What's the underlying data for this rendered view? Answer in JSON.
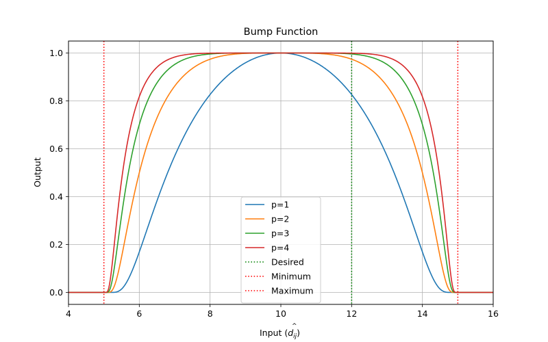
{
  "chart_data": {
    "type": "line",
    "title": "Bump Function",
    "xlabel": "Input (",
    "xlabel_math_base": "d",
    "xlabel_math_sub": "ij",
    "xlabel_math_hat": "^",
    "xlabel_close": ")",
    "ylabel": "Output",
    "xlim": [
      4,
      16
    ],
    "ylim": [
      -0.05,
      1.05
    ],
    "xticks": [
      4,
      6,
      8,
      10,
      12,
      14,
      16
    ],
    "yticks": [
      0.0,
      0.2,
      0.4,
      0.6,
      0.8,
      1.0
    ],
    "xtick_labels": [
      "4",
      "6",
      "8",
      "10",
      "12",
      "14",
      "16"
    ],
    "ytick_labels": [
      "0.0",
      "0.2",
      "0.4",
      "0.6",
      "0.8",
      "1.0"
    ],
    "grid": true,
    "domain": [
      5,
      15
    ],
    "center": 10,
    "series": [
      {
        "name": "p=1",
        "p": 1,
        "color": "#1f77b4"
      },
      {
        "name": "p=2",
        "p": 2,
        "color": "#ff7f0e"
      },
      {
        "name": "p=3",
        "p": 3,
        "color": "#2ca02c"
      },
      {
        "name": "p=4",
        "p": 4,
        "color": "#d62728"
      }
    ],
    "vlines": [
      {
        "name": "Desired",
        "x": 12,
        "color": "#008000"
      },
      {
        "name": "Minimum",
        "x": 5,
        "color": "#ff0000"
      },
      {
        "name": "Maximum",
        "x": 15,
        "color": "#ff0000"
      }
    ],
    "legend_position": "bottom-center"
  }
}
